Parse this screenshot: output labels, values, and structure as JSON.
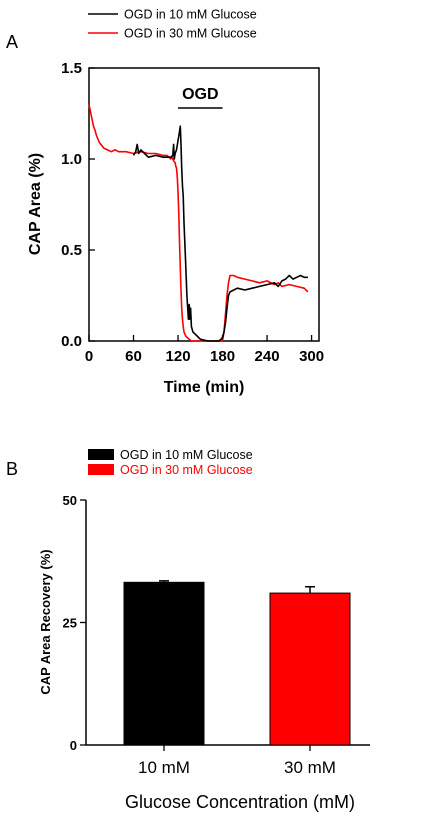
{
  "chart_data": [
    {
      "type": "line",
      "panel_label": "A",
      "xlabel": "Time (min)",
      "ylabel": "CAP Area (%)",
      "xlim": [
        0,
        310
      ],
      "ylim": [
        0,
        1.5
      ],
      "xticks": [
        "0",
        "60",
        "120",
        "180",
        "240",
        "300"
      ],
      "yticks": [
        "0.0",
        "0.5",
        "1.0",
        "1.5"
      ],
      "annotation": {
        "text": "OGD",
        "x_start": 120,
        "x_end": 180,
        "y": 1.28
      },
      "legend_position": "top",
      "series": [
        {
          "name": "OGD in 10 mM Glucose",
          "color": "#000000",
          "x": [
            60,
            63,
            65,
            67,
            70,
            75,
            80,
            90,
            100,
            110,
            113,
            114,
            115,
            116,
            118,
            120,
            122,
            123,
            124,
            125,
            126,
            127,
            128,
            130,
            132,
            134,
            135,
            136,
            137,
            138,
            140,
            145,
            150,
            160,
            170,
            175,
            178,
            180,
            182,
            184,
            186,
            188,
            190,
            195,
            200,
            210,
            220,
            230,
            240,
            250,
            255,
            260,
            265,
            270,
            275,
            280,
            285,
            290,
            295
          ],
          "y": [
            1.02,
            1.04,
            1.08,
            1.03,
            1.05,
            1.03,
            1.01,
            1.02,
            1.01,
            1.01,
            1.02,
            1.08,
            1.0,
            1.03,
            1.05,
            1.1,
            1.15,
            1.18,
            1.08,
            0.95,
            0.85,
            0.8,
            0.65,
            0.45,
            0.25,
            0.12,
            0.2,
            0.12,
            0.18,
            0.08,
            0.05,
            0.03,
            0.01,
            0.0,
            0.0,
            0.0,
            0.01,
            0.02,
            0.05,
            0.1,
            0.18,
            0.25,
            0.27,
            0.28,
            0.29,
            0.28,
            0.29,
            0.3,
            0.31,
            0.32,
            0.3,
            0.33,
            0.34,
            0.36,
            0.34,
            0.35,
            0.36,
            0.35,
            0.35
          ]
        },
        {
          "name": "OGD in 30 mM Glucose",
          "color": "#ff0000",
          "x": [
            0,
            2,
            4,
            6,
            8,
            10,
            12,
            14,
            16,
            20,
            25,
            30,
            35,
            40,
            50,
            60,
            70,
            80,
            90,
            100,
            105,
            108,
            110,
            112,
            114,
            116,
            117,
            118,
            119,
            120,
            121,
            122,
            123,
            124,
            125,
            126,
            127,
            128,
            130,
            132,
            135,
            138,
            140,
            145,
            150,
            160,
            170,
            175,
            178,
            180,
            182,
            184,
            186,
            188,
            190,
            195,
            200,
            210,
            220,
            230,
            240,
            250,
            255,
            260,
            270,
            280,
            290,
            295
          ],
          "y": [
            1.3,
            1.26,
            1.22,
            1.18,
            1.16,
            1.13,
            1.11,
            1.09,
            1.08,
            1.06,
            1.05,
            1.04,
            1.05,
            1.04,
            1.04,
            1.03,
            1.04,
            1.03,
            1.03,
            1.02,
            1.02,
            1.01,
            1.0,
            1.01,
            0.99,
            0.98,
            0.96,
            0.95,
            0.9,
            0.82,
            0.7,
            0.55,
            0.4,
            0.28,
            0.18,
            0.12,
            0.08,
            0.05,
            0.03,
            0.02,
            0.01,
            0.0,
            0.0,
            0.0,
            0.0,
            0.0,
            0.0,
            0.0,
            0.0,
            0.0,
            0.05,
            0.15,
            0.25,
            0.32,
            0.36,
            0.36,
            0.35,
            0.34,
            0.33,
            0.32,
            0.33,
            0.31,
            0.32,
            0.3,
            0.31,
            0.3,
            0.29,
            0.27
          ]
        }
      ]
    },
    {
      "type": "bar",
      "panel_label": "B",
      "categories": [
        "10 mM",
        "30 mM"
      ],
      "xlabel": "Glucose Concentration (mM)",
      "ylabel": "CAP Area Recovery (%)",
      "ylim": [
        0,
        50
      ],
      "yticks": [
        "0",
        "25",
        "50"
      ],
      "legend_position": "top-left",
      "series": [
        {
          "name": "OGD in 10 mM Glucose",
          "color": "#000000",
          "value": 33.2,
          "error": 0.3
        },
        {
          "name": "OGD in 30 mM Glucose",
          "color": "#ff0000",
          "value": 31.0,
          "error": 1.3
        }
      ]
    }
  ]
}
